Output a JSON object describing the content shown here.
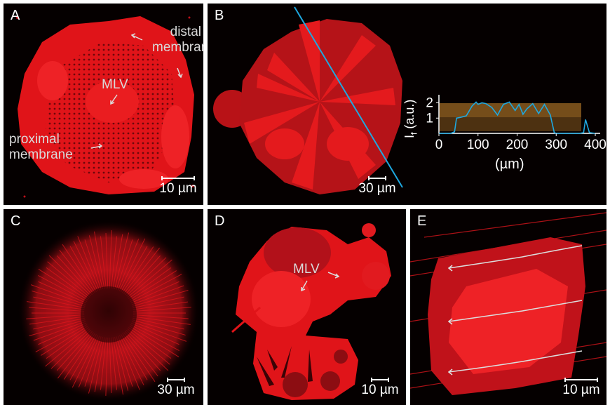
{
  "panels": {
    "A": {
      "label": "A",
      "annotations": {
        "distal": "distal membrane",
        "mlv": "MLV",
        "proximal": "proximal membrane"
      },
      "scalebar": "10 µm"
    },
    "B": {
      "label": "B",
      "scalebar": "30 µm",
      "inset": {
        "ylabel_main": "I",
        "ylabel_sub": "f",
        "ylabel_unit": " (a.u.)",
        "xlabel": "(µm)",
        "yticks": [
          "1",
          "2"
        ],
        "xticks": [
          "0",
          "100",
          "200",
          "300",
          "400"
        ]
      }
    },
    "C": {
      "label": "C",
      "scalebar": "30 µm"
    },
    "D": {
      "label": "D",
      "annotations": {
        "mlv": "MLV"
      },
      "scalebar": "10 µm"
    },
    "E": {
      "label": "E",
      "scalebar": "10 µm"
    }
  },
  "colors": {
    "membrane": "#e8191c",
    "profile": "#1ea8e0",
    "band": "#8a5a1e"
  },
  "chart_data": {
    "type": "line",
    "xlabel": "(µm)",
    "ylabel": "If (a.u.)",
    "xlim": [
      0,
      400
    ],
    "ylim": [
      0,
      2.3
    ],
    "xticks": [
      0,
      100,
      200,
      300,
      400
    ],
    "yticks": [
      1,
      2
    ],
    "series": [
      {
        "x": [
          0,
          20,
          30,
          40,
          45,
          55,
          70,
          85,
          95,
          100,
          110,
          120,
          135,
          150,
          165,
          180,
          195,
          205,
          215,
          225,
          240,
          255,
          270,
          285,
          295,
          300,
          320,
          340,
          360,
          370,
          375,
          385,
          400
        ],
        "values": [
          0,
          0,
          0,
          0.1,
          1.0,
          1.05,
          1.15,
          1.8,
          2.05,
          1.9,
          2.0,
          1.95,
          1.7,
          1.2,
          1.9,
          2.05,
          1.5,
          1.9,
          1.25,
          1.6,
          1.95,
          1.3,
          1.9,
          1.2,
          0.05,
          0,
          0,
          0,
          0,
          0.05,
          0.9,
          0.05,
          0
        ]
      }
    ]
  }
}
